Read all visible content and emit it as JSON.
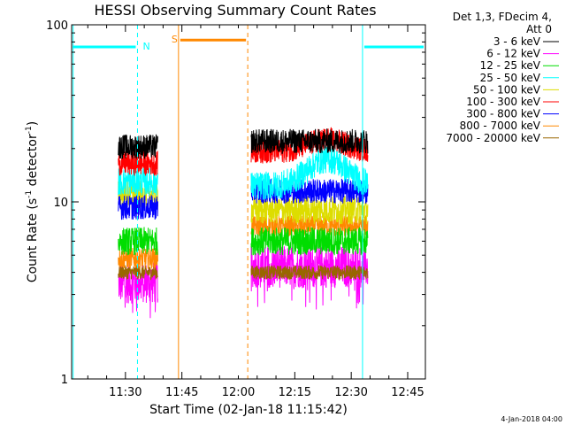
{
  "chart_data": {
    "type": "line",
    "title": "HESSI Observing Summary Count Rates",
    "xlabel": "Start Time (02-Jan-18 11:15:42)",
    "ylabel_main": "Count Rate (s",
    "ylabel_sup1": "-1",
    "ylabel_mid": " detector",
    "ylabel_sup2": "-1",
    "ylabel_end": ")",
    "yscale": "log",
    "ylim": [
      1,
      100
    ],
    "xlim_minutes": [
      0,
      94
    ],
    "x_ticks": [
      {
        "label": "11:30",
        "minutes": 14.3
      },
      {
        "label": "11:45",
        "minutes": 29.3
      },
      {
        "label": "12:00",
        "minutes": 44.3
      },
      {
        "label": "12:15",
        "minutes": 59.3
      },
      {
        "label": "12:30",
        "minutes": 74.3
      },
      {
        "label": "12:45",
        "minutes": 89.3
      }
    ],
    "y_ticks": [
      {
        "label": "1",
        "value": 1
      },
      {
        "label": "10",
        "value": 10
      },
      {
        "label": "100",
        "value": 100
      }
    ],
    "legend_header": [
      "Det 1,3, FDecim 4,",
      "Att 0"
    ],
    "series": [
      {
        "name": "3 - 6 keV",
        "color": "#000000",
        "level_a": 20.5,
        "level_b": 22.0,
        "spread": 0.07
      },
      {
        "name": "6 - 12 keV",
        "color": "#ff00ff",
        "level_a": 3.5,
        "level_b": 4.3,
        "spread": 0.12
      },
      {
        "name": "12 - 25 keV",
        "color": "#00dd00",
        "level_a": 6.0,
        "level_b": 6.0,
        "spread": 0.08
      },
      {
        "name": "25 - 50 keV",
        "color": "#00ffff",
        "level_a": 13.0,
        "level_b": 14.5,
        "spread": 0.08
      },
      {
        "name": "50 - 100 keV",
        "color": "#dddd00",
        "level_a": 11.0,
        "level_b": 9.0,
        "spread": 0.08
      },
      {
        "name": "100 - 300 keV",
        "color": "#ff0000",
        "level_a": 16.5,
        "level_b": 21.0,
        "spread": 0.07
      },
      {
        "name": "300 - 800 keV",
        "color": "#0000ff",
        "level_a": 9.3,
        "level_b": 11.5,
        "spread": 0.07
      },
      {
        "name": "800 - 7000 keV",
        "color": "#ff8800",
        "level_a": 4.8,
        "level_b": 7.3,
        "spread": 0.06
      },
      {
        "name": "7000 - 20000 keV",
        "color": "#996600",
        "level_a": 4.0,
        "level_b": 4.0,
        "spread": 0.04
      }
    ],
    "data_segments": [
      {
        "start_minutes": 12.4,
        "end_minutes": 22.9
      },
      {
        "start_minutes": 47.7,
        "end_minutes": 78.7
      }
    ],
    "flag_bars": [
      {
        "label": "N",
        "color": "#00ffff",
        "level": 75,
        "segments": [
          [
            0,
            17.5
          ],
          [
            77.3,
            94
          ]
        ]
      },
      {
        "label": "S",
        "color": "#ff8800",
        "level": 82,
        "segments": [
          [
            28.4,
            46.8
          ]
        ]
      }
    ],
    "vertical_markers": [
      {
        "minutes": 0.4,
        "color": "#00ffff",
        "style": "solid"
      },
      {
        "minutes": 17.5,
        "color": "#00ffff",
        "style": "dashed"
      },
      {
        "minutes": 77.3,
        "color": "#00ffff",
        "style": "solid"
      },
      {
        "minutes": 94.0,
        "color": "#00ffff",
        "style": "dashed"
      },
      {
        "minutes": 28.4,
        "color": "#ff8800",
        "style": "solid"
      },
      {
        "minutes": 46.8,
        "color": "#ff8800",
        "style": "dashed"
      }
    ],
    "timestamp": "4-Jan-2018 04:00"
  }
}
